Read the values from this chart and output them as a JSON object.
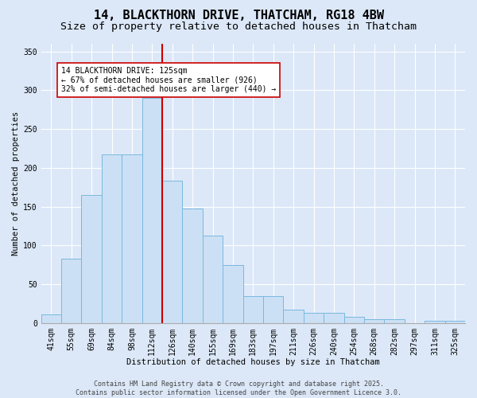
{
  "title": "14, BLACKTHORN DRIVE, THATCHAM, RG18 4BW",
  "subtitle": "Size of property relative to detached houses in Thatcham",
  "xlabel": "Distribution of detached houses by size in Thatcham",
  "ylabel": "Number of detached properties",
  "bar_labels": [
    "41sqm",
    "55sqm",
    "69sqm",
    "84sqm",
    "98sqm",
    "112sqm",
    "126sqm",
    "140sqm",
    "155sqm",
    "169sqm",
    "183sqm",
    "197sqm",
    "211sqm",
    "226sqm",
    "240sqm",
    "254sqm",
    "268sqm",
    "282sqm",
    "297sqm",
    "311sqm",
    "325sqm"
  ],
  "bar_values": [
    11,
    83,
    165,
    217,
    217,
    290,
    183,
    148,
    113,
    75,
    35,
    35,
    17,
    13,
    13,
    8,
    5,
    5,
    0,
    3,
    3
  ],
  "bar_color": "#cce0f5",
  "bar_edge_color": "#7ab8de",
  "red_line_index": 6,
  "red_line_color": "#cc0000",
  "annotation_text": "14 BLACKTHORN DRIVE: 125sqm\n← 67% of detached houses are smaller (926)\n32% of semi-detached houses are larger (440) →",
  "annotation_box_color": "#ffffff",
  "annotation_box_edge": "#cc0000",
  "ylim": [
    0,
    360
  ],
  "yticks": [
    0,
    50,
    100,
    150,
    200,
    250,
    300,
    350
  ],
  "footer": "Contains HM Land Registry data © Crown copyright and database right 2025.\nContains public sector information licensed under the Open Government Licence 3.0.",
  "bg_color": "#dce8f8",
  "plot_bg": "#dce8f8",
  "title_fontsize": 11,
  "subtitle_fontsize": 9.5,
  "tick_fontsize": 7,
  "label_fontsize": 7.5
}
